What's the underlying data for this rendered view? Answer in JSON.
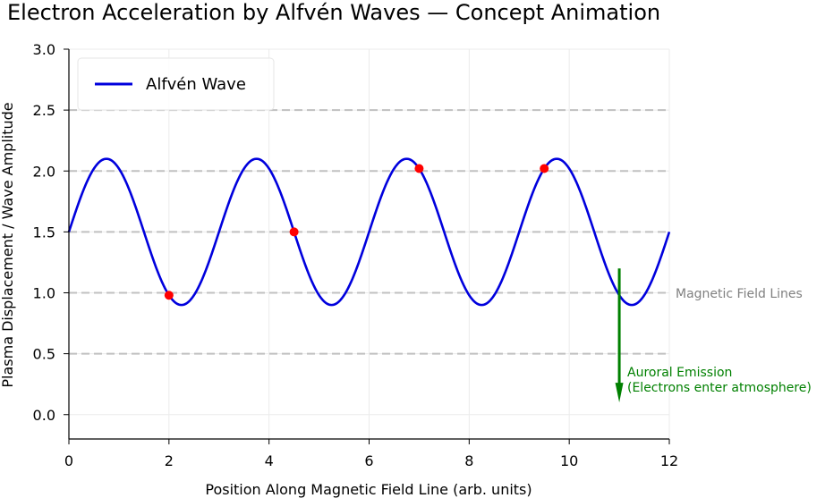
{
  "chart_data": {
    "type": "line",
    "title": "Electron Acceleration by Alfvén Waves — Concept Animation",
    "xlabel": "Position Along Magnetic Field Line (arb. units)",
    "ylabel": "Plasma Displacement / Wave Amplitude",
    "xlim": [
      0,
      12
    ],
    "ylim": [
      -0.2,
      3.0
    ],
    "x_ticks": [
      0,
      2,
      4,
      6,
      8,
      10,
      12
    ],
    "y_ticks": [
      0.0,
      0.5,
      1.0,
      1.5,
      2.0,
      2.5,
      3.0
    ],
    "x_tick_labels": [
      "0",
      "2",
      "4",
      "6",
      "8",
      "10",
      "12"
    ],
    "y_tick_labels": [
      "0.0",
      "0.5",
      "1.0",
      "1.5",
      "2.0",
      "2.5",
      "3.0"
    ],
    "grid": true,
    "series": [
      {
        "name": "Alfvén Wave",
        "color": "#0000dd",
        "function": "1.5 + 0.6*sin(2*pi*x/3)",
        "offset": 1.5,
        "amplitude": 0.6,
        "wavelength": 3,
        "x_range": [
          0,
          12
        ]
      }
    ],
    "electrons": {
      "color": "#ff0000",
      "points": [
        {
          "x": 2.0,
          "y": 0.98
        },
        {
          "x": 4.5,
          "y": 1.5
        },
        {
          "x": 7.0,
          "y": 2.02
        },
        {
          "x": 9.5,
          "y": 2.02
        }
      ]
    },
    "field_lines": {
      "y_values": [
        0.5,
        1.0,
        1.5,
        2.0,
        2.5
      ],
      "color": "#c0c0c0",
      "label": "Magnetic Field Lines"
    },
    "emission_arrow": {
      "x": 11,
      "y_start": 1.2,
      "y_end": 0.1,
      "color": "#008000",
      "label_line1": "Auroral Emission",
      "label_line2": "(Electrons enter atmosphere)"
    },
    "legend": {
      "position": "top-left",
      "entries": [
        "Alfvén Wave"
      ]
    }
  }
}
